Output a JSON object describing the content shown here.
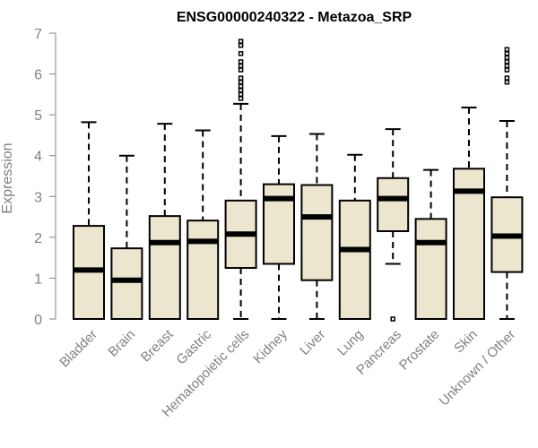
{
  "chart_data": {
    "type": "boxplot",
    "title": "ENSG00000240322 - Metazoa_SRP",
    "xlabel": "",
    "ylabel": "Expression",
    "ylim": [
      0,
      7
    ],
    "yticks": [
      "0",
      "1",
      "2",
      "3",
      "4",
      "5",
      "6",
      "7"
    ],
    "categories": [
      "Bladder",
      "Brain",
      "Breast",
      "Gastric",
      "Hematopoietic cells",
      "Kidney",
      "Liver",
      "Lung",
      "Pancreas",
      "Prostate",
      "Skin",
      "Unknown / Other"
    ],
    "boxes": [
      {
        "name": "Bladder",
        "whisker_low": 0,
        "q1": 0,
        "median": 1.2,
        "q3": 2.28,
        "whisker_high": 4.82,
        "outliers": []
      },
      {
        "name": "Brain",
        "whisker_low": 0,
        "q1": 0,
        "median": 0.95,
        "q3": 1.73,
        "whisker_high": 4.0,
        "outliers": []
      },
      {
        "name": "Breast",
        "whisker_low": 0,
        "q1": 0,
        "median": 1.87,
        "q3": 2.52,
        "whisker_high": 4.78,
        "outliers": []
      },
      {
        "name": "Gastric",
        "whisker_low": 0,
        "q1": 0,
        "median": 1.9,
        "q3": 2.41,
        "whisker_high": 4.62,
        "outliers": []
      },
      {
        "name": "Hematopoietic cells",
        "whisker_low": 0,
        "q1": 1.25,
        "median": 2.08,
        "q3": 2.9,
        "whisker_high": 5.27,
        "outliers": [
          5.4,
          5.5,
          5.6,
          5.7,
          5.8,
          5.9,
          6.1,
          6.2,
          6.3,
          6.5,
          6.7,
          6.8
        ]
      },
      {
        "name": "Kidney",
        "whisker_low": 0,
        "q1": 1.35,
        "median": 2.95,
        "q3": 3.3,
        "whisker_high": 4.48,
        "outliers": []
      },
      {
        "name": "Liver",
        "whisker_low": 0,
        "q1": 0.95,
        "median": 2.5,
        "q3": 3.28,
        "whisker_high": 4.53,
        "outliers": []
      },
      {
        "name": "Lung",
        "whisker_low": 0,
        "q1": 0,
        "median": 1.7,
        "q3": 2.9,
        "whisker_high": 4.02,
        "outliers": []
      },
      {
        "name": "Pancreas",
        "whisker_low": 1.35,
        "q1": 2.15,
        "median": 2.95,
        "q3": 3.45,
        "whisker_high": 4.65,
        "outliers": [
          0
        ]
      },
      {
        "name": "Prostate",
        "whisker_low": 0,
        "q1": 0,
        "median": 1.87,
        "q3": 2.45,
        "whisker_high": 3.65,
        "outliers": []
      },
      {
        "name": "Skin",
        "whisker_low": 0,
        "q1": 0,
        "median": 3.13,
        "q3": 3.68,
        "whisker_high": 5.18,
        "outliers": []
      },
      {
        "name": "Unknown / Other",
        "whisker_low": 0,
        "q1": 1.15,
        "median": 2.03,
        "q3": 2.98,
        "whisker_high": 4.85,
        "outliers": [
          5.8,
          5.9,
          6.1,
          6.2,
          6.3,
          6.4,
          6.5,
          6.6
        ]
      }
    ]
  },
  "colors": {
    "box_fill": "#ede6cf",
    "box_stroke": "#000000",
    "axis": "#808080",
    "title": "#000000"
  }
}
